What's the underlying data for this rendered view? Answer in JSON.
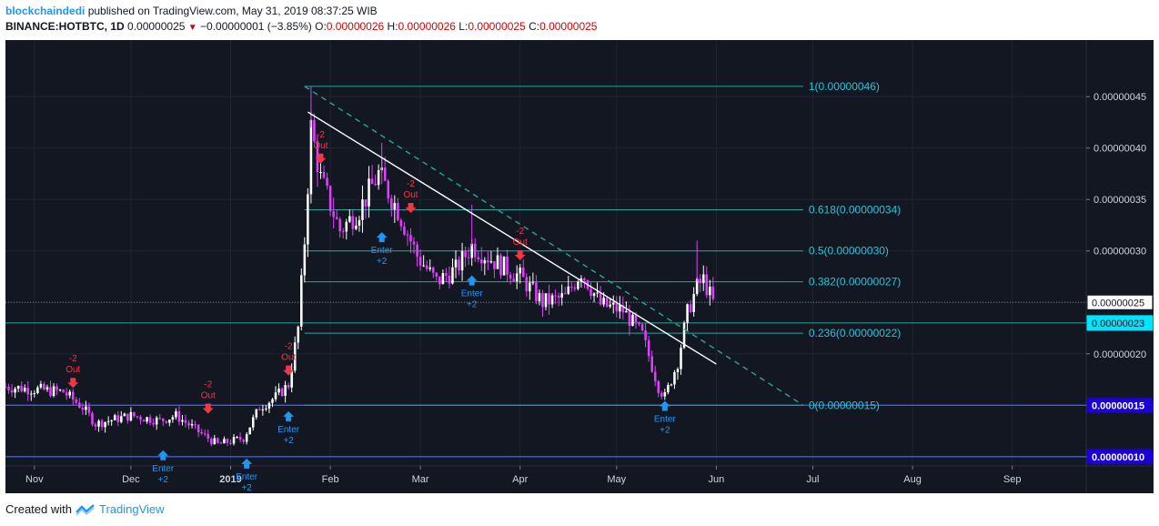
{
  "header": {
    "author": "blockchaindedi",
    "published": "published on TradingView.com, May 31, 2019 08:37:25 WIB",
    "symbol": "BINANCE:HOTBTC, 1D",
    "last": "0.00000025",
    "change": "−0.00000001 (−3.85%)",
    "o_label": "O:",
    "o_val": "0.00000026",
    "h_label": "H:",
    "h_val": "0.00000026",
    "l_label": "L:",
    "l_val": "0.00000025",
    "c_label": "C:",
    "c_val": "0.00000025"
  },
  "footer": {
    "created_with": "Created with",
    "brand": "TradingView"
  },
  "colors": {
    "background": "#131722",
    "up": "#ffffff",
    "down": "#e040fb",
    "fib": "#26a69a",
    "fib_label": "#26c6da",
    "trend": "#ffffff",
    "enter": "#2196f3",
    "out": "#f23645",
    "hline": "#2962ff",
    "grid": "#1e2433"
  },
  "chart_data": {
    "type": "candlestick",
    "x_axis_labels": [
      "Nov",
      "Dec",
      "2019",
      "Feb",
      "Mar",
      "Apr",
      "May",
      "Jun",
      "Jul",
      "Aug",
      "Sep"
    ],
    "y_axis_labels": [
      "0.00000045",
      "0.00000040",
      "0.00000035",
      "0.00000030",
      "0.00000025",
      "0.00000020",
      "0.00000015",
      "0.00000010"
    ],
    "ylim": [
      9.1e-08,
      5.05e-07
    ],
    "xlim": [
      "2018-10-23",
      "2019-09-24"
    ],
    "price_tags": [
      {
        "value": 2.5e-07,
        "label": "0.00000025",
        "style": "last"
      },
      {
        "value": 2.3e-07,
        "label": "0.00000023",
        "style": "cyan"
      },
      {
        "value": 1.5e-07,
        "label": "0.00000015",
        "style": "blue"
      },
      {
        "value": 1e-07,
        "label": "0.00000010",
        "style": "blue"
      }
    ],
    "fib_levels": [
      {
        "value": 4.6e-07,
        "label": "1(0.00000046)"
      },
      {
        "value": 3.4e-07,
        "label": "0.618(0.00000034)"
      },
      {
        "value": 3e-07,
        "label": "0.5(0.00000030)"
      },
      {
        "value": 2.7e-07,
        "label": "0.382(0.00000027)"
      },
      {
        "value": 2.2e-07,
        "label": "0.236(0.00000022)"
      },
      {
        "value": 1.5e-07,
        "label": "0(0.00000015)"
      }
    ],
    "fib_start": "2019-01-24",
    "fib_end": "2019-06-28",
    "horizontal_lines": [
      1.5e-07,
      1e-07
    ],
    "trendlines": [
      {
        "from": [
          "2019-01-25",
          4.35e-07
        ],
        "to": [
          "2019-06-01",
          1.9e-07
        ],
        "style": "solid"
      },
      {
        "from": [
          "2019-01-24",
          4.6e-07
        ],
        "to": [
          "2019-06-28",
          1.5e-07
        ],
        "style": "dashed"
      }
    ],
    "signals": [
      {
        "date": "2018-11-13",
        "type": "out",
        "qty": "-2",
        "text": "Out",
        "price": 1.66e-07
      },
      {
        "date": "2018-12-25",
        "type": "out",
        "qty": "-2",
        "text": "Out",
        "price": 1.41e-07
      },
      {
        "date": "2019-01-19",
        "type": "out",
        "qty": "-2",
        "text": "Out",
        "price": 1.78e-07
      },
      {
        "date": "2019-01-29",
        "type": "out",
        "qty": "-2",
        "text": "Out",
        "price": 3.84e-07
      },
      {
        "date": "2019-02-26",
        "type": "out",
        "qty": "-2",
        "text": "Out",
        "price": 3.36e-07
      },
      {
        "date": "2019-04-01",
        "type": "out",
        "qty": "-2",
        "text": "Out",
        "price": 2.9e-07
      },
      {
        "date": "2018-12-11",
        "type": "enter",
        "qty": "+2",
        "text": "Enter",
        "price": 1.08e-07
      },
      {
        "date": "2019-01-06",
        "type": "enter",
        "qty": "+2",
        "text": "Enter",
        "price": 1e-07
      },
      {
        "date": "2019-01-19",
        "type": "enter",
        "qty": "+2",
        "text": "Enter",
        "price": 1.46e-07
      },
      {
        "date": "2019-02-17",
        "type": "enter",
        "qty": "+2",
        "text": "Enter",
        "price": 3.2e-07
      },
      {
        "date": "2019-03-17",
        "type": "enter",
        "qty": "+2",
        "text": "Enter",
        "price": 2.78e-07
      },
      {
        "date": "2019-05-16",
        "type": "enter",
        "qty": "+2",
        "text": "Enter",
        "price": 1.56e-07
      }
    ],
    "path_points": [
      [
        "2018-10-23",
        1.68e-07
      ],
      [
        "2018-11-10",
        1.63e-07
      ],
      [
        "2018-11-16",
        1.48e-07
      ],
      [
        "2018-11-20",
        1.32e-07
      ],
      [
        "2018-12-01",
        1.4e-07
      ],
      [
        "2018-12-10",
        1.35e-07
      ],
      [
        "2018-12-15",
        1.4e-07
      ],
      [
        "2018-12-24",
        1.2e-07
      ],
      [
        "2018-12-28",
        1.12e-07
      ],
      [
        "2019-01-05",
        1.18e-07
      ],
      [
        "2019-01-10",
        1.48e-07
      ],
      [
        "2019-01-15",
        1.58e-07
      ],
      [
        "2019-01-19",
        1.7e-07
      ],
      [
        "2019-01-22",
        2.25e-07
      ],
      [
        "2019-01-24",
        3.1e-07
      ],
      [
        "2019-01-26",
        4.2e-07
      ],
      [
        "2019-01-29",
        3.7e-07
      ],
      [
        "2019-02-04",
        3.2e-07
      ],
      [
        "2019-02-10",
        3.4e-07
      ],
      [
        "2019-02-16",
        3.75e-07
      ],
      [
        "2019-02-22",
        3.4e-07
      ],
      [
        "2019-02-28",
        2.95e-07
      ],
      [
        "2019-03-06",
        2.7e-07
      ],
      [
        "2019-03-12",
        2.82e-07
      ],
      [
        "2019-03-17",
        3.05e-07
      ],
      [
        "2019-03-24",
        2.9e-07
      ],
      [
        "2019-04-01",
        2.75e-07
      ],
      [
        "2019-04-08",
        2.5e-07
      ],
      [
        "2019-04-15",
        2.55e-07
      ],
      [
        "2019-04-20",
        2.8e-07
      ],
      [
        "2019-04-26",
        2.48e-07
      ],
      [
        "2019-05-03",
        2.42e-07
      ],
      [
        "2019-05-09",
        2.18e-07
      ],
      [
        "2019-05-14",
        1.68e-07
      ],
      [
        "2019-05-16",
        1.58e-07
      ],
      [
        "2019-05-20",
        1.92e-07
      ],
      [
        "2019-05-23",
        2.4e-07
      ],
      [
        "2019-05-26",
        2.65e-07
      ],
      [
        "2019-05-28",
        2.72e-07
      ],
      [
        "2019-05-31",
        2.5e-07
      ]
    ]
  }
}
